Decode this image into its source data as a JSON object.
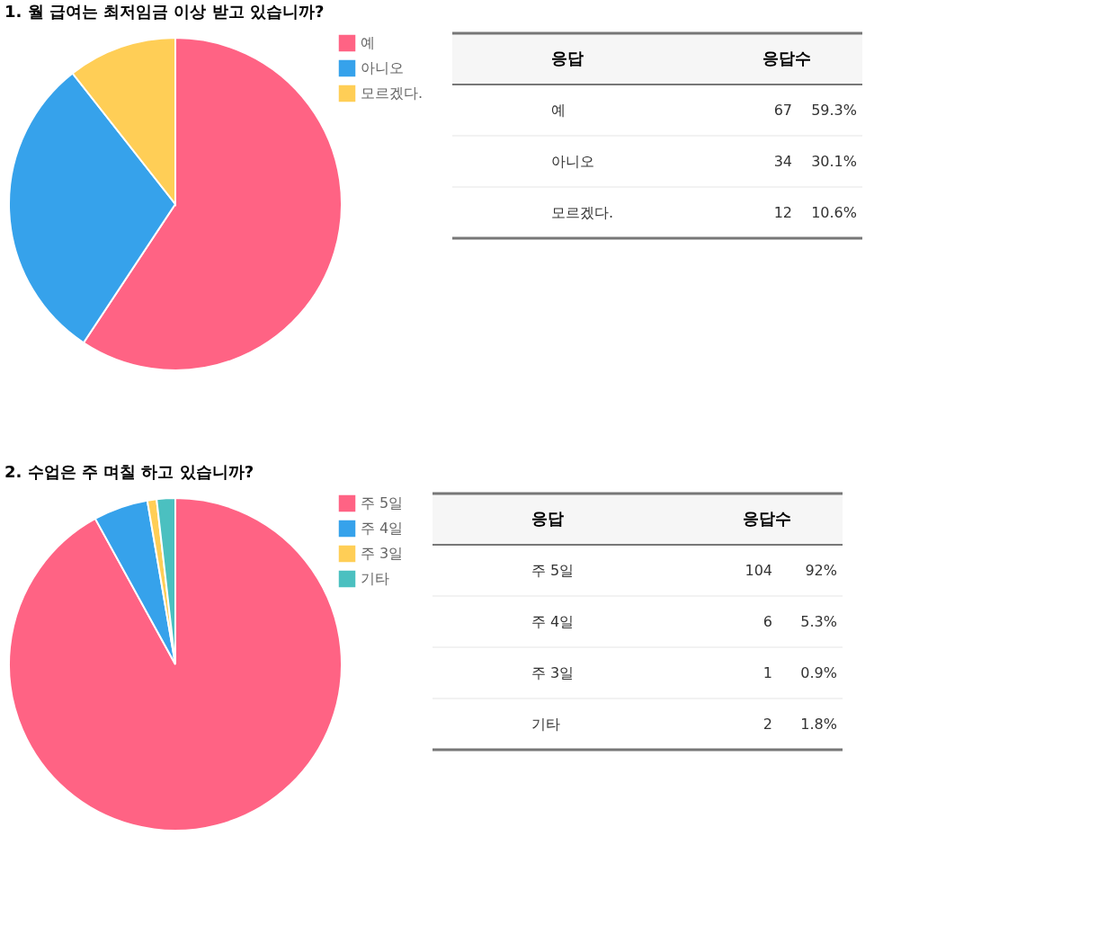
{
  "chart_data": [
    {
      "type": "pie",
      "title": "1. 월 급여는 최저임금 이상 받고 있습니까?",
      "categories": [
        "예",
        "아니오",
        "모르겠다."
      ],
      "values": [
        59.3,
        30.1,
        10.6
      ],
      "colors": [
        "#ff6384",
        "#36a2eb",
        "#ffce56"
      ],
      "legend": "right"
    },
    {
      "type": "other",
      "categories": [
        "예",
        "아니오",
        "모르겠다."
      ],
      "values": [
        67,
        34,
        12
      ],
      "data_labels": true,
      "annotations": [
        "응답",
        "응답수",
        "59.3%",
        "30.1%",
        "10.6%"
      ]
    },
    {
      "type": "pie",
      "title": "2. 수업은 주 며칠 하고 있습니까?",
      "categories": [
        "주 5일",
        "주 4일",
        "주 3일",
        "기타"
      ],
      "values": [
        92,
        5.3,
        0.9,
        1.8
      ],
      "colors": [
        "#ff6384",
        "#36a2eb",
        "#ffce56",
        "#4bc0c0"
      ],
      "legend": "right"
    },
    {
      "type": "other",
      "categories": [
        "주 5일",
        "주 4일",
        "주 3일",
        "기타"
      ],
      "values": [
        104,
        6,
        1,
        2
      ],
      "data_labels": true,
      "annotations": [
        "응답",
        "응답수",
        "92%",
        "5.3%",
        "0.9%",
        "1.8%"
      ]
    }
  ]
}
